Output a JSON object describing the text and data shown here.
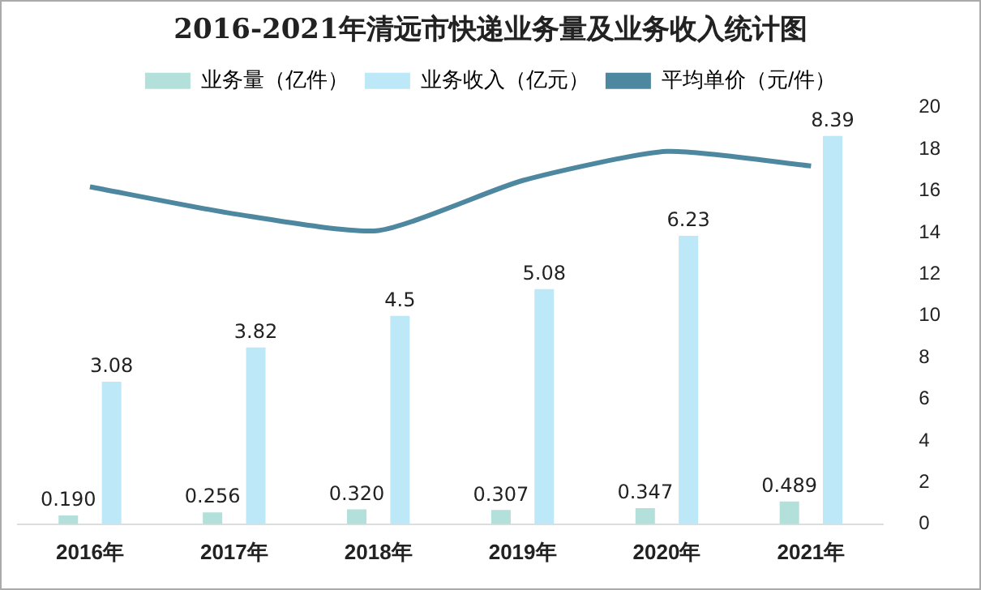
{
  "chart_data": {
    "type": "bar",
    "title": "2016-2021年清远市快递业务量及业务收入统计图",
    "categories": [
      "2016年",
      "2017年",
      "2018年",
      "2019年",
      "2020年",
      "2021年"
    ],
    "series": [
      {
        "name": "业务量（亿件）",
        "color": "#b3e0da",
        "values": [
          0.19,
          0.256,
          0.32,
          0.307,
          0.347,
          0.489
        ],
        "value_labels": [
          "0.190",
          "0.256",
          "0.320",
          "0.307",
          "0.347",
          "0.489"
        ]
      },
      {
        "name": "业务收入（亿元）",
        "color": "#bde8f7",
        "values": [
          3.08,
          3.82,
          4.5,
          5.08,
          6.23,
          8.39
        ],
        "value_labels": [
          "3.08",
          "3.82",
          "4.5",
          "5.08",
          "6.23",
          "8.39"
        ]
      },
      {
        "name": "平均单价（元/件）",
        "type": "line",
        "axis": "y2",
        "color": "#4e87a0",
        "values": [
          16.2,
          14.9,
          14.1,
          16.5,
          17.9,
          17.2
        ]
      }
    ],
    "y2lim": [
      0,
      20
    ],
    "y2ticks": [
      0,
      2,
      4,
      6,
      8,
      10,
      12,
      14,
      16,
      18,
      20
    ],
    "grid": false,
    "legend": "top",
    "marker": "none"
  }
}
